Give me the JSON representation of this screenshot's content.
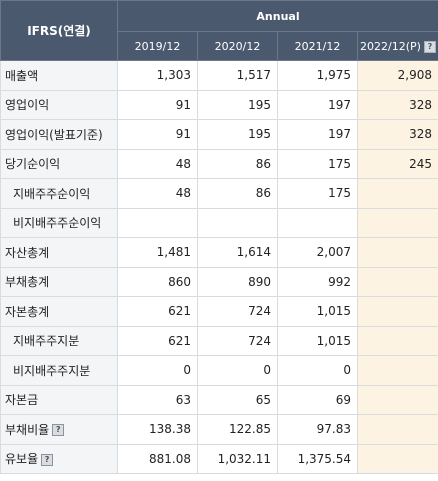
{
  "header": {
    "title": "IFRS(연결)",
    "period_group": "Annual",
    "years": [
      "2019/12",
      "2020/12",
      "2021/12",
      "2022/12(P)"
    ],
    "help_icon": "question-icon"
  },
  "rows": [
    {
      "label": "매출액",
      "values": [
        "1,303",
        "1,517",
        "1,975",
        "2,908"
      ]
    },
    {
      "label": "영업이익",
      "values": [
        "91",
        "195",
        "197",
        "328"
      ]
    },
    {
      "label": "영업이익(발표기준)",
      "values": [
        "91",
        "195",
        "197",
        "328"
      ]
    },
    {
      "label": "당기순이익",
      "values": [
        "48",
        "86",
        "175",
        "245"
      ]
    },
    {
      "label": "지배주주순이익",
      "values": [
        "48",
        "86",
        "175",
        ""
      ]
    },
    {
      "label": "비지배주주순이익",
      "values": [
        "",
        "",
        "",
        ""
      ]
    },
    {
      "label": "자산총계",
      "values": [
        "1,481",
        "1,614",
        "2,007",
        ""
      ]
    },
    {
      "label": "부채총계",
      "values": [
        "860",
        "890",
        "992",
        ""
      ]
    },
    {
      "label": "자본총계",
      "values": [
        "621",
        "724",
        "1,015",
        ""
      ]
    },
    {
      "label": "지배주주지분",
      "values": [
        "621",
        "724",
        "1,015",
        ""
      ]
    },
    {
      "label": "비지배주주지분",
      "values": [
        "0",
        "0",
        "0",
        ""
      ]
    },
    {
      "label": "자본금",
      "values": [
        "63",
        "65",
        "69",
        ""
      ]
    },
    {
      "label": "부채비율",
      "values": [
        "138.38",
        "122.85",
        "97.83",
        ""
      ]
    },
    {
      "label": "유보율",
      "values": [
        "881.08",
        "1,032.11",
        "1,375.54",
        ""
      ]
    }
  ],
  "colors": {
    "header_bg": "#4a596d",
    "label_bg": "#f4f5f7",
    "estimate_bg": "#fdf3e3",
    "border": "#d8dbe0"
  }
}
